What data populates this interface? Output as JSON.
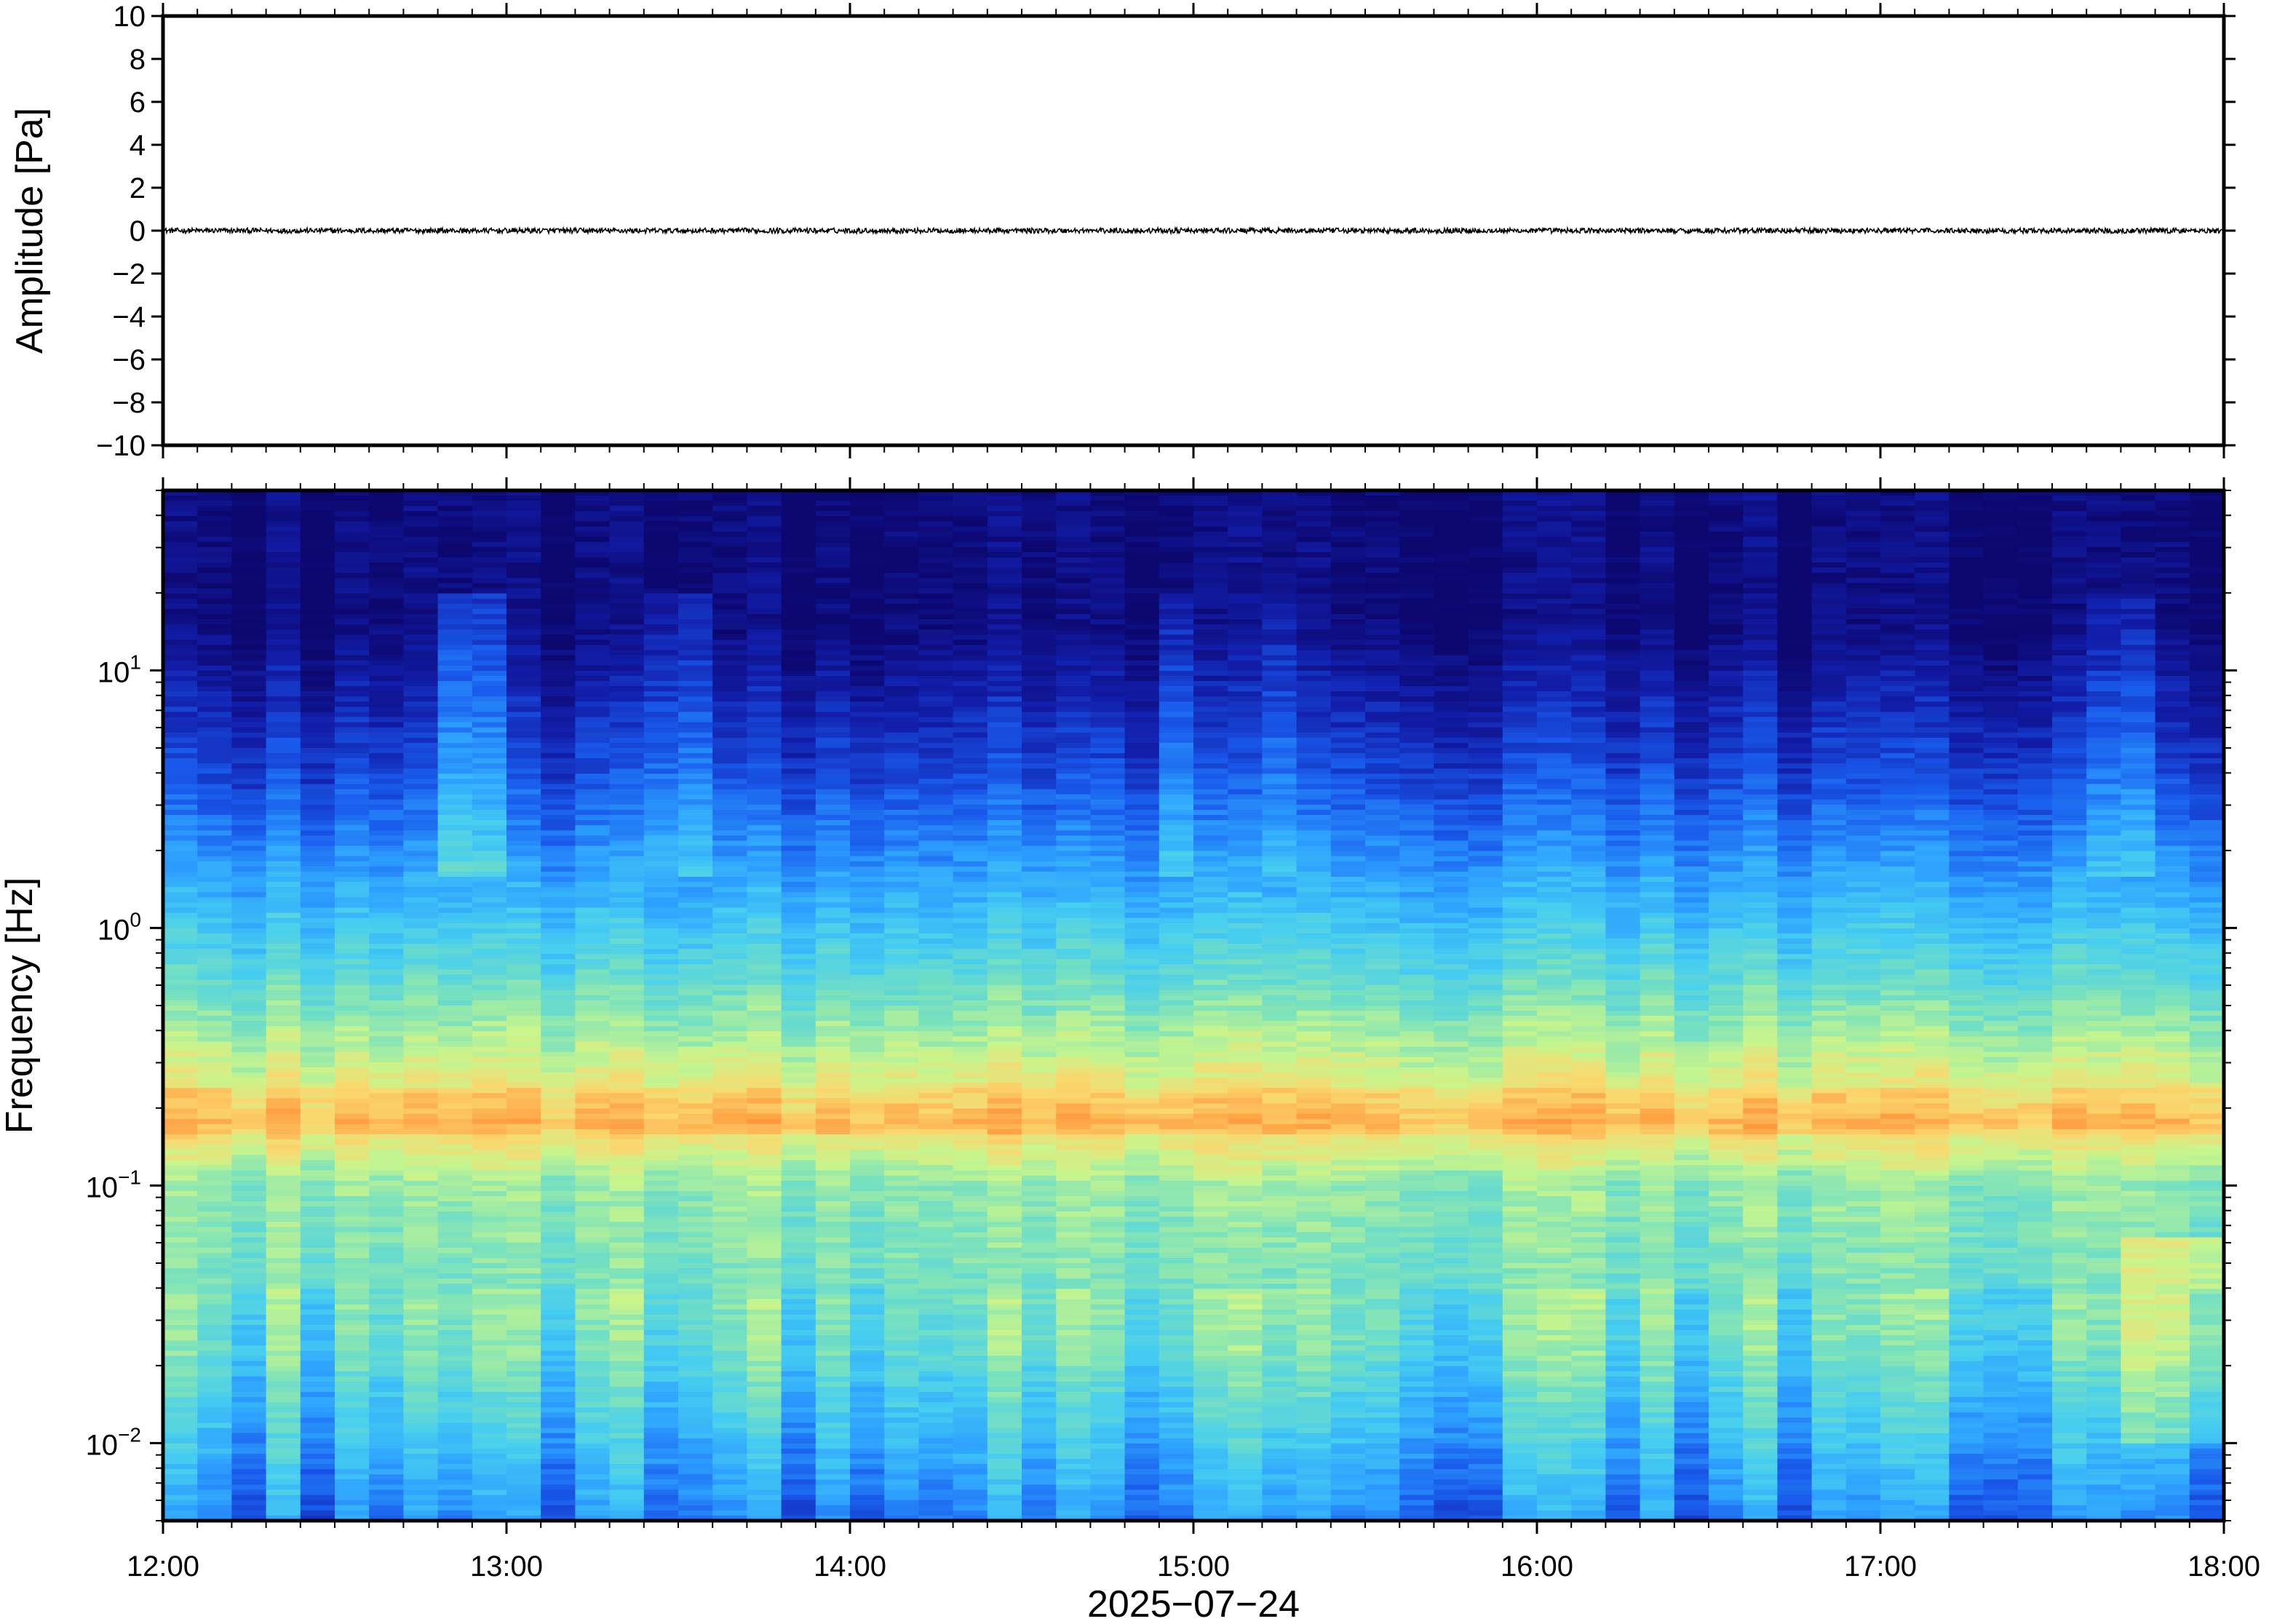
{
  "chart_data": [
    {
      "type": "line",
      "panel": "waveform",
      "ylabel": "Amplitude [Pa]",
      "ylim": [
        -10,
        10
      ],
      "yticks": [
        10,
        8,
        6,
        4,
        2,
        0,
        -2,
        -4,
        -6,
        -8,
        -10
      ],
      "ytick_labels": [
        "10",
        "8",
        "6",
        "4",
        "2",
        "0",
        "−2",
        "−4",
        "−6",
        "−8",
        "−10"
      ],
      "xlim": [
        "12:00",
        "18:00"
      ],
      "series": [
        {
          "x_range": [
            "12:00",
            "18:00"
          ],
          "mean": 0.0,
          "noise_amplitude": 0.12,
          "color": "#000000"
        }
      ]
    },
    {
      "type": "heatmap",
      "panel": "spectrogram",
      "ylabel": "Frequency [Hz]",
      "yscale": "log",
      "ylim": [
        0.005,
        50
      ],
      "yticks": [
        {
          "base": "10",
          "exp": "1"
        },
        {
          "base": "10",
          "exp": "0"
        },
        {
          "base": "10",
          "exp": "−1"
        },
        {
          "base": "10",
          "exp": "−2"
        }
      ],
      "xlim": [
        "12:00",
        "18:00"
      ],
      "colormap": "jet-like",
      "peak_band_hz": [
        0.15,
        0.25
      ],
      "columns_per_hour": 10,
      "rows": 200
    }
  ],
  "xaxis": {
    "tick_labels": [
      "12:00",
      "13:00",
      "14:00",
      "15:00",
      "16:00",
      "17:00",
      "18:00"
    ],
    "xlabel": "2025−07−24"
  },
  "colors": {
    "frame": "#000000",
    "spec_top": "#0d0870",
    "spec_peak": "#ffb040",
    "spec_low": "#3aa0ff"
  }
}
